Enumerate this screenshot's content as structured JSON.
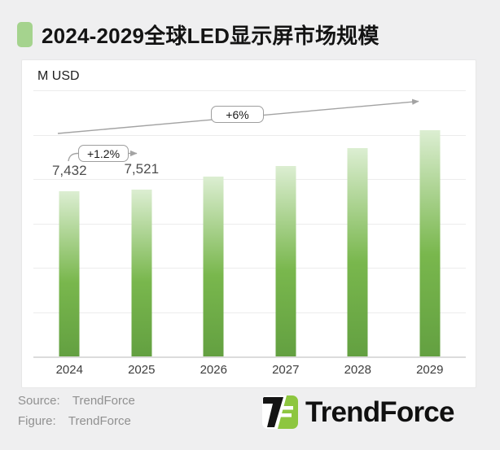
{
  "title": "2024-2029全球LED显示屏市场规模",
  "chart_data": {
    "type": "bar",
    "title": "2024-2029全球LED显示屏市场规模",
    "unit": "M USD",
    "categories": [
      "2024",
      "2025",
      "2026",
      "2027",
      "2028",
      "2029"
    ],
    "values": [
      7432,
      7521,
      8100,
      8600,
      9400,
      10200
    ],
    "value_labels": [
      "7,432",
      "7,521",
      "",
      "",
      "",
      ""
    ],
    "ylim": [
      0,
      12000
    ],
    "gridline_interval": 2000,
    "grid": "on",
    "legend": "none",
    "annotations": [
      {
        "label": "+1.2%"
      },
      {
        "label": "+6%"
      }
    ]
  },
  "footer": {
    "source_label": "Source:",
    "source_value": "TrendForce",
    "figure_label": "Figure:",
    "figure_value": "TrendForce",
    "logo_text": "TrendForce"
  },
  "colors": {
    "accent_green": "#a5d38e",
    "bar_gradient_top": "#dceed2",
    "bar_gradient_mid": "#79b74d",
    "bar_gradient_bottom": "#63a041",
    "arrow_gray": "#a3a3a3",
    "logo_green": "#8dc63f",
    "logo_black": "#141414"
  }
}
